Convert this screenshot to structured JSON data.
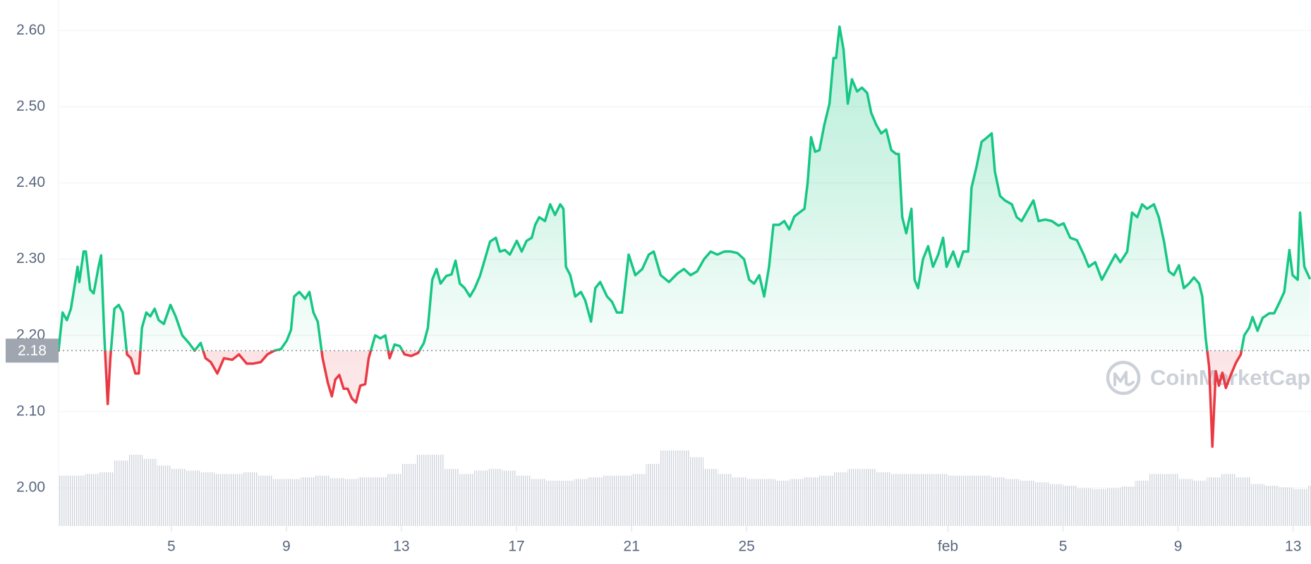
{
  "chart_data": {
    "type": "line",
    "color": "#16c784",
    "down_color": "#ea3943",
    "baseline": 2.18,
    "watermark": "CoinMarketCap",
    "grid": true,
    "xlim": [
      0.08,
      43.62
    ],
    "ylim": [
      1.95,
      2.64
    ],
    "yticks": [
      {
        "value": 2,
        "label": "2.00"
      },
      {
        "value": 2.1,
        "label": "2.10"
      },
      {
        "value": 2.2,
        "label": "2.20"
      },
      {
        "value": 2.3,
        "label": "2.30"
      },
      {
        "value": 2.4,
        "label": "2.40"
      },
      {
        "value": 2.5,
        "label": "2.50"
      },
      {
        "value": 2.6,
        "label": "2.60"
      }
    ],
    "xticks": [
      {
        "value": 4,
        "label": "5"
      },
      {
        "value": 8,
        "label": "9"
      },
      {
        "value": 12,
        "label": "13"
      },
      {
        "value": 16,
        "label": "17"
      },
      {
        "value": 20,
        "label": "21"
      },
      {
        "value": 24,
        "label": "25"
      },
      {
        "value": 31,
        "label": "feb"
      },
      {
        "value": 35,
        "label": "5"
      },
      {
        "value": 39,
        "label": "9"
      },
      {
        "value": 43,
        "label": "13"
      }
    ],
    "x": [
      0.08,
      0.22,
      0.37,
      0.51,
      0.66,
      0.74,
      0.8,
      0.95,
      1.03,
      1.18,
      1.3,
      1.47,
      1.56,
      1.67,
      1.79,
      1.88,
      2.02,
      2.17,
      2.31,
      2.46,
      2.6,
      2.75,
      2.87,
      2.98,
      3.13,
      3.27,
      3.42,
      3.56,
      3.74,
      3.97,
      4.15,
      4.38,
      4.61,
      4.81,
      5.02,
      5.19,
      5.37,
      5.6,
      5.83,
      6.12,
      6.35,
      6.62,
      6.85,
      7.11,
      7.34,
      7.58,
      7.81,
      8.01,
      8.16,
      8.27,
      8.45,
      8.65,
      8.8,
      8.94,
      9.09,
      9.26,
      9.44,
      9.58,
      9.7,
      9.84,
      9.99,
      10.13,
      10.28,
      10.42,
      10.57,
      10.74,
      10.86,
      11.01,
      11.09,
      11.27,
      11.44,
      11.59,
      11.76,
      11.94,
      12.11,
      12.34,
      12.58,
      12.78,
      12.92,
      13.07,
      13.22,
      13.36,
      13.56,
      13.74,
      13.88,
      14.03,
      14.2,
      14.38,
      14.55,
      14.73,
      14.9,
      15.08,
      15.28,
      15.42,
      15.6,
      15.77,
      16.01,
      16.18,
      16.35,
      16.53,
      16.65,
      16.79,
      16.99,
      17.17,
      17.34,
      17.52,
      17.63,
      17.72,
      17.87,
      18.04,
      18.24,
      18.39,
      18.59,
      18.74,
      18.91,
      19.15,
      19.32,
      19.49,
      19.67,
      19.9,
      20.13,
      20.37,
      20.6,
      20.77,
      21.01,
      21.3,
      21.59,
      21.82,
      22.05,
      22.28,
      22.52,
      22.75,
      22.98,
      23.22,
      23.45,
      23.68,
      23.91,
      24.09,
      24.26,
      24.44,
      24.61,
      24.78,
      24.93,
      25.13,
      25.31,
      25.48,
      25.66,
      25.83,
      26.01,
      26.12,
      26.24,
      26.38,
      26.53,
      26.7,
      26.88,
      27.02,
      27.11,
      27.23,
      27.37,
      27.52,
      27.66,
      27.84,
      28.01,
      28.19,
      28.33,
      28.51,
      28.68,
      28.85,
      29.03,
      29.2,
      29.29,
      29.41,
      29.55,
      29.73,
      29.84,
      29.96,
      30.13,
      30.31,
      30.48,
      30.66,
      30.83,
      30.95,
      31.18,
      31.36,
      31.53,
      31.7,
      31.82,
      31.99,
      32.17,
      32.34,
      32.52,
      32.63,
      32.81,
      32.98,
      33.22,
      33.39,
      33.56,
      33.8,
      33.97,
      34.15,
      34.38,
      34.61,
      34.84,
      35.02,
      35.25,
      35.48,
      35.72,
      35.89,
      36.12,
      36.35,
      36.59,
      36.82,
      36.99,
      37.23,
      37.4,
      37.58,
      37.75,
      37.92,
      38.16,
      38.33,
      38.51,
      38.68,
      38.85,
      39.03,
      39.2,
      39.38,
      39.55,
      39.73,
      39.84,
      39.96,
      40.08,
      40.19,
      40.31,
      40.42,
      40.54,
      40.66,
      40.83,
      41.01,
      41.18,
      41.3,
      41.47,
      41.59,
      41.76,
      41.94,
      42.17,
      42.34,
      42.52,
      42.69,
      42.87,
      42.98,
      43.16,
      43.24,
      43.39,
      43.57
    ],
    "values": [
      2.18,
      2.23,
      2.22,
      2.235,
      2.27,
      2.29,
      2.27,
      2.31,
      2.31,
      2.26,
      2.255,
      2.29,
      2.305,
      2.2,
      2.11,
      2.17,
      2.235,
      2.24,
      2.23,
      2.175,
      2.17,
      2.15,
      2.15,
      2.21,
      2.23,
      2.225,
      2.235,
      2.22,
      2.215,
      2.24,
      2.225,
      2.2,
      2.19,
      2.18,
      2.19,
      2.17,
      2.165,
      2.15,
      2.17,
      2.168,
      2.175,
      2.163,
      2.163,
      2.165,
      2.175,
      2.18,
      2.182,
      2.193,
      2.207,
      2.251,
      2.257,
      2.248,
      2.257,
      2.23,
      2.218,
      2.17,
      2.138,
      2.12,
      2.142,
      2.148,
      2.13,
      2.13,
      2.117,
      2.112,
      2.134,
      2.136,
      2.17,
      2.19,
      2.2,
      2.196,
      2.2,
      2.17,
      2.188,
      2.186,
      2.175,
      2.173,
      2.177,
      2.19,
      2.21,
      2.273,
      2.287,
      2.268,
      2.278,
      2.28,
      2.298,
      2.268,
      2.262,
      2.251,
      2.262,
      2.278,
      2.3,
      2.323,
      2.328,
      2.31,
      2.312,
      2.306,
      2.324,
      2.31,
      2.324,
      2.328,
      2.345,
      2.355,
      2.35,
      2.372,
      2.358,
      2.372,
      2.366,
      2.29,
      2.279,
      2.251,
      2.257,
      2.246,
      2.218,
      2.262,
      2.27,
      2.251,
      2.244,
      2.23,
      2.23,
      2.306,
      2.279,
      2.287,
      2.306,
      2.31,
      2.279,
      2.27,
      2.281,
      2.287,
      2.279,
      2.284,
      2.3,
      2.31,
      2.306,
      2.31,
      2.31,
      2.308,
      2.3,
      2.273,
      2.268,
      2.279,
      2.251,
      2.29,
      2.345,
      2.345,
      2.35,
      2.339,
      2.356,
      2.361,
      2.366,
      2.4,
      2.46,
      2.441,
      2.443,
      2.476,
      2.504,
      2.564,
      2.564,
      2.605,
      2.575,
      2.504,
      2.536,
      2.52,
      2.525,
      2.518,
      2.492,
      2.476,
      2.465,
      2.47,
      2.443,
      2.438,
      2.438,
      2.355,
      2.334,
      2.366,
      2.273,
      2.262,
      2.3,
      2.317,
      2.29,
      2.306,
      2.328,
      2.29,
      2.31,
      2.29,
      2.31,
      2.31,
      2.394,
      2.421,
      2.454,
      2.459,
      2.465,
      2.415,
      2.383,
      2.377,
      2.372,
      2.355,
      2.35,
      2.366,
      2.377,
      2.35,
      2.352,
      2.35,
      2.344,
      2.347,
      2.328,
      2.325,
      2.306,
      2.29,
      2.296,
      2.273,
      2.29,
      2.306,
      2.296,
      2.31,
      2.361,
      2.355,
      2.372,
      2.366,
      2.372,
      2.355,
      2.323,
      2.284,
      2.279,
      2.292,
      2.262,
      2.268,
      2.276,
      2.268,
      2.251,
      2.196,
      2.158,
      2.054,
      2.153,
      2.134,
      2.151,
      2.131,
      2.148,
      2.164,
      2.175,
      2.2,
      2.21,
      2.224,
      2.206,
      2.223,
      2.229,
      2.229,
      2.243,
      2.257,
      2.312,
      2.279,
      2.273,
      2.361,
      2.29,
      2.275
    ],
    "volume": {
      "color": "#cfd4dc",
      "x": [
        0,
        0.5,
        1,
        1.5,
        2,
        2.5,
        3,
        3.5,
        4,
        4.5,
        5,
        5.5,
        6,
        6.5,
        7,
        7.5,
        8,
        8.5,
        9,
        9.5,
        10,
        10.5,
        11,
        11.5,
        12,
        12.5,
        13,
        13.5,
        14,
        14.5,
        15,
        15.5,
        16,
        16.5,
        17,
        17.5,
        18,
        18.5,
        19,
        19.5,
        20,
        20.5,
        21,
        21.5,
        22,
        22.5,
        23,
        23.5,
        24,
        24.5,
        25,
        25.5,
        26,
        26.5,
        27,
        27.5,
        28,
        28.5,
        29,
        29.5,
        30,
        30.5,
        31,
        31.5,
        32,
        32.5,
        33,
        33.5,
        34,
        34.5,
        35,
        35.5,
        36,
        36.5,
        37,
        37.5,
        38,
        38.5,
        39,
        39.5,
        40,
        40.5,
        41,
        41.5,
        42,
        42.5,
        43,
        43.5
      ],
      "values": [
        60,
        60,
        62,
        64,
        78,
        85,
        80,
        72,
        68,
        66,
        64,
        62,
        62,
        64,
        60,
        56,
        56,
        58,
        60,
        57,
        56,
        58,
        58,
        62,
        74,
        85,
        85,
        68,
        62,
        66,
        68,
        66,
        60,
        56,
        54,
        54,
        56,
        58,
        60,
        60,
        62,
        74,
        90,
        90,
        82,
        68,
        62,
        58,
        56,
        56,
        54,
        56,
        58,
        60,
        64,
        68,
        68,
        64,
        62,
        62,
        62,
        62,
        60,
        60,
        60,
        58,
        56,
        54,
        52,
        50,
        48,
        45,
        44,
        45,
        47,
        54,
        62,
        62,
        56,
        54,
        58,
        62,
        58,
        50,
        48,
        46,
        44,
        48
      ]
    }
  }
}
